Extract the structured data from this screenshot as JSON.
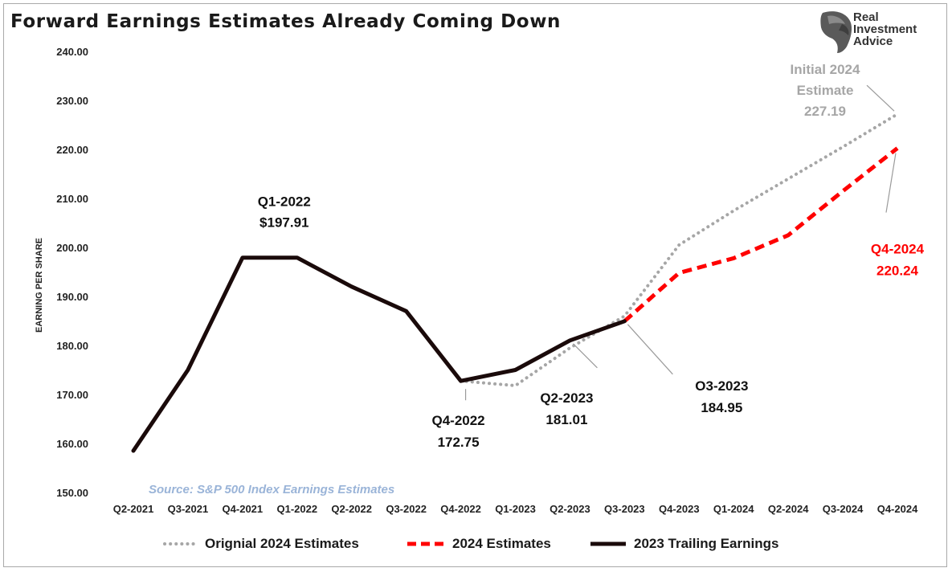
{
  "title": "Forward Earnings Estimates Already Coming Down",
  "logo": {
    "lines": [
      "Real",
      "Investment",
      "Advice"
    ],
    "icon": "eagle-head-icon"
  },
  "source": "Source: S&P 500 Index Earnings Estimates",
  "legend": [
    {
      "label": "Orignial 2024 Estimates",
      "style": "dotted",
      "color": "#a6a6a6"
    },
    {
      "label": "2024 Estimates",
      "style": "dashed",
      "color": "#ff0000"
    },
    {
      "label": "2023 Trailing Earnings",
      "style": "solid",
      "color": "#1a0a0a"
    }
  ],
  "chart_data": {
    "type": "line",
    "title": "Forward Earnings Estimates Already Coming Down",
    "ylabel": "EARNING PER SHARE",
    "xlabel": "",
    "ylim": [
      150,
      240
    ],
    "yticks": [
      "150.00",
      "160.00",
      "170.00",
      "180.00",
      "190.00",
      "200.00",
      "210.00",
      "220.00",
      "230.00",
      "240.00"
    ],
    "yticks_values": [
      150,
      160,
      170,
      180,
      190,
      200,
      210,
      220,
      230,
      240
    ],
    "categories": [
      "Q2-2021",
      "Q3-2021",
      "Q4-2021",
      "Q1-2022",
      "Q2-2022",
      "Q3-2022",
      "Q4-2022",
      "Q1-2023",
      "Q2-2023",
      "Q3-2023",
      "Q4-2023",
      "Q1-2024",
      "Q2-2024",
      "Q3-2024",
      "Q4-2024"
    ],
    "grid": false,
    "legend_position": "bottom",
    "series": [
      {
        "name": "Orignial 2024 Estimates",
        "color": "#a6a6a6",
        "style": "dotted",
        "values": [
          null,
          null,
          null,
          null,
          null,
          null,
          172.75,
          171.8,
          179.5,
          186.0,
          200.5,
          207.5,
          214.0,
          220.5,
          227.19
        ]
      },
      {
        "name": "2024 Estimates",
        "color": "#ff0000",
        "style": "dashed",
        "values": [
          null,
          null,
          null,
          null,
          null,
          null,
          null,
          null,
          null,
          184.95,
          194.8,
          197.8,
          202.5,
          211.5,
          220.24
        ]
      },
      {
        "name": "2023 Trailing Earnings",
        "color": "#1a0a0a",
        "style": "solid",
        "values": [
          158.5,
          175.0,
          197.91,
          197.91,
          192.0,
          187.0,
          172.75,
          175.0,
          181.01,
          184.95,
          null,
          null,
          null,
          null,
          null
        ]
      }
    ],
    "annotations": [
      {
        "lines": [
          "Q1-2022",
          "$197.91"
        ],
        "color": "#111111",
        "x_index": 3,
        "y": 197.91,
        "leader": false
      },
      {
        "lines": [
          "Q4-2022",
          "172.75"
        ],
        "color": "#111111",
        "x_index": 6,
        "y": 172.75,
        "leader": true
      },
      {
        "lines": [
          "Q2-2023",
          "181.01"
        ],
        "color": "#111111",
        "x_index": 8,
        "y": 181.01,
        "leader": true
      },
      {
        "lines": [
          "O3-2023",
          "184.95"
        ],
        "color": "#111111",
        "x_index": 9,
        "y": 184.95,
        "leader": true
      },
      {
        "lines": [
          "Initial 2024",
          "Estimate",
          "227.19"
        ],
        "color": "#a6a6a6",
        "x_index": 14,
        "y": 227.19,
        "leader": true
      },
      {
        "lines": [
          "Q4-2024",
          "220.24"
        ],
        "color": "#ff0000",
        "x_index": 14,
        "y": 220.24,
        "leader": true
      }
    ]
  }
}
